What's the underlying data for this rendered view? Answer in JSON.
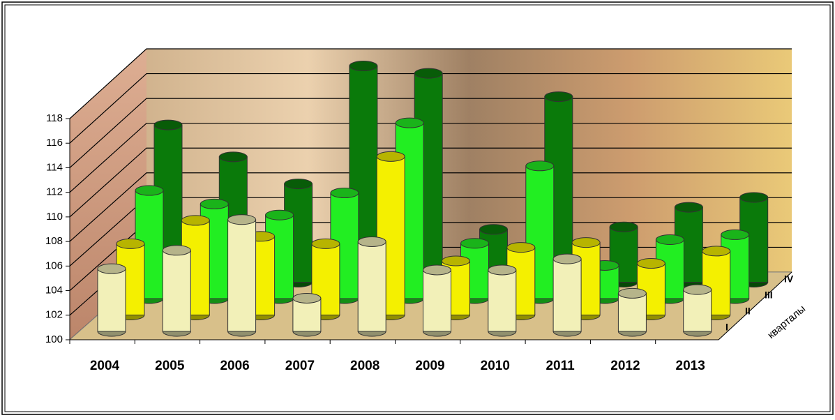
{
  "chart_data": {
    "type": "bar3d",
    "categories": [
      "2004",
      "2005",
      "2006",
      "2007",
      "2008",
      "2009",
      "2010",
      "2011",
      "2012",
      "2013"
    ],
    "series": [
      {
        "name": "I",
        "color": "#f2f0b8",
        "values": [
          105.1,
          106.6,
          109.1,
          102.7,
          107.3,
          105.0,
          105.0,
          105.9,
          103.1,
          103.4
        ]
      },
      {
        "name": "II",
        "color": "#f4f000",
        "values": [
          105.8,
          107.7,
          106.4,
          105.8,
          112.9,
          104.4,
          105.5,
          105.9,
          104.2,
          105.2
        ]
      },
      {
        "name": "III",
        "color": "#22ee22",
        "values": [
          108.8,
          107.7,
          106.8,
          108.6,
          114.3,
          104.5,
          110.8,
          102.7,
          104.8,
          105.2
        ]
      },
      {
        "name": "IV",
        "color": "#0a7a0a",
        "values": [
          112.8,
          110.2,
          108.0,
          117.6,
          117.0,
          104.3,
          115.1,
          104.5,
          106.1,
          106.9
        ]
      }
    ],
    "depth_axis_label": "кварталы",
    "ylim": [
      100,
      118
    ],
    "yticks": [
      100,
      102,
      104,
      106,
      108,
      110,
      112,
      114,
      116,
      118
    ],
    "grid": true
  }
}
